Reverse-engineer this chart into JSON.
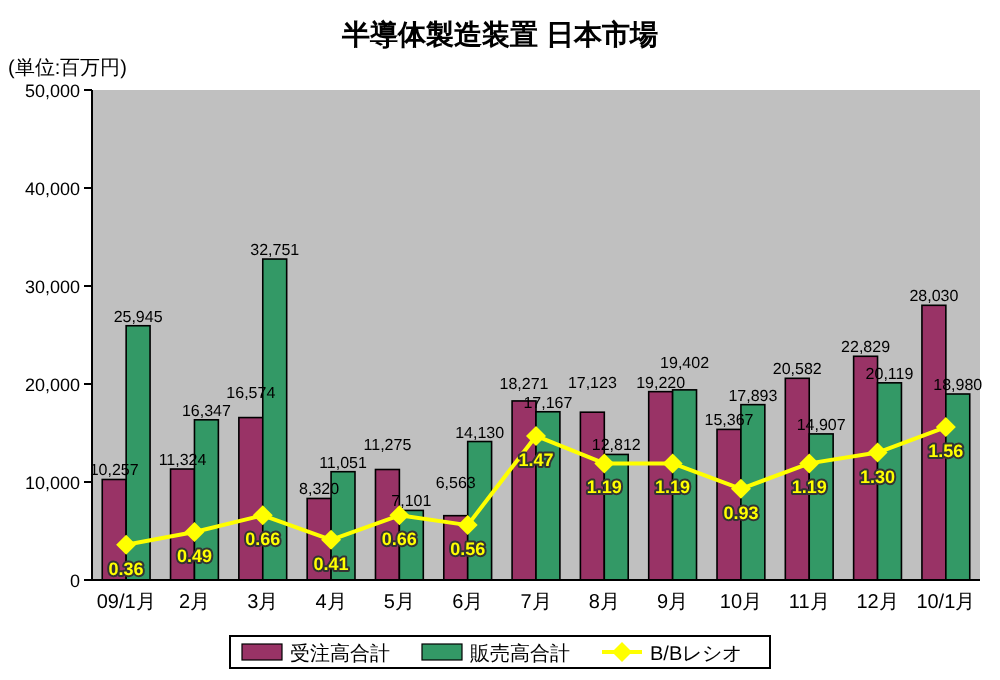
{
  "chart_data": {
    "type": "bar",
    "title": "半導体製造装置 日本市場",
    "ylabel": "(単位:百万円)",
    "categories": [
      "09/1月",
      "2月",
      "3月",
      "4月",
      "5月",
      "6月",
      "7月",
      "8月",
      "9月",
      "10月",
      "11月",
      "12月",
      "10/1月"
    ],
    "series": [
      {
        "name": "受注高合計",
        "color": "#993366",
        "values": [
          10257,
          11324,
          16574,
          8320,
          11275,
          6563,
          18271,
          17123,
          19220,
          15367,
          20582,
          22829,
          28030
        ],
        "value_labels": [
          "10,257",
          "11,324",
          "16,574",
          "8,320",
          "11,275",
          "6,563",
          "18,271",
          "17,123",
          "19,220",
          "15,367",
          "20,582",
          "22,829",
          "28,030"
        ]
      },
      {
        "name": "販売高合計",
        "color": "#339966",
        "values": [
          25945,
          16347,
          32751,
          11051,
          7101,
          14130,
          17167,
          12812,
          19402,
          17893,
          14907,
          20119,
          18980
        ],
        "value_labels": [
          "25,945",
          "16,347",
          "32,751",
          "11,051",
          "7,101",
          "14,130",
          "17,167",
          "12,812",
          "19,402",
          "17,893",
          "14,907",
          "20,119",
          "18,980"
        ]
      },
      {
        "name": "B/Bレシオ",
        "type": "line",
        "axis": "y2",
        "color": "#ffff00",
        "values": [
          0.36,
          0.49,
          0.66,
          0.41,
          0.66,
          0.56,
          1.47,
          1.19,
          1.19,
          0.93,
          1.19,
          1.3,
          1.56
        ],
        "value_labels": [
          "0.36",
          "0.49",
          "0.66",
          "0.41",
          "0.66",
          "0.56",
          "1.47",
          "1.19",
          "1.19",
          "0.93",
          "1.19",
          "1.30",
          "1.56"
        ]
      }
    ],
    "ylim": [
      0,
      50000
    ],
    "yticks": [
      0,
      {
        "value": 10000,
        "label": "10,000"
      },
      {
        "value": 20000,
        "label": "20,000"
      },
      {
        "value": 30000,
        "label": "30,000"
      },
      {
        "value": 40000,
        "label": "40,000"
      },
      {
        "value": 50000,
        "label": "50,000"
      }
    ],
    "y2lim": [
      0,
      5
    ],
    "tick_labels": "xy",
    "legend": "bottom",
    "marker": "diamond",
    "grid": false
  }
}
